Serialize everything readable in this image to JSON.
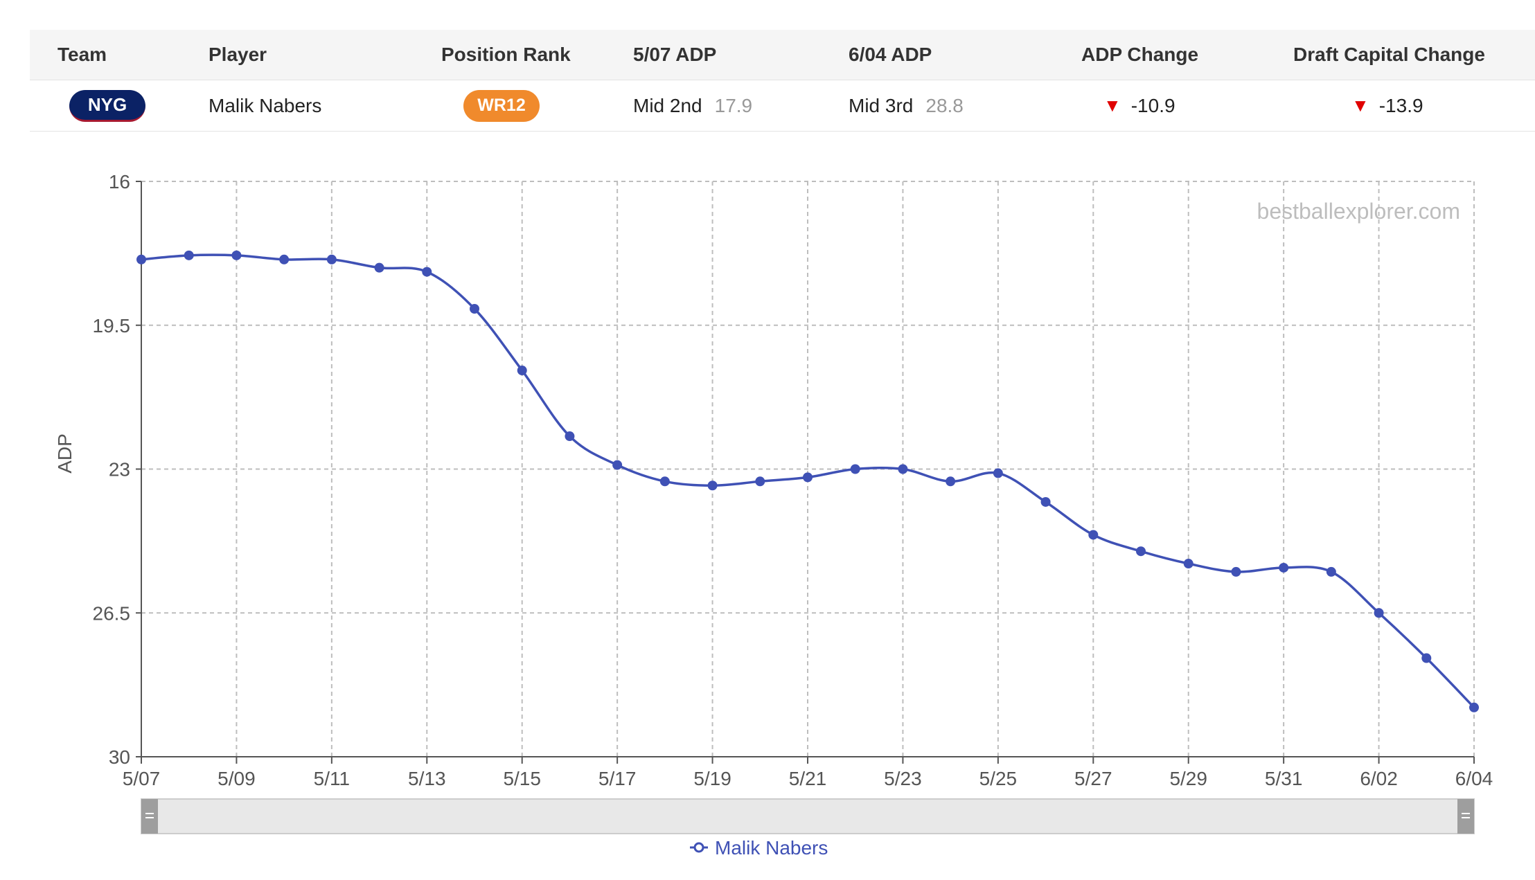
{
  "table": {
    "headers": {
      "team": "Team",
      "player": "Player",
      "position_rank": "Position Rank",
      "adp_start": "5/07 ADP",
      "adp_end": "6/04 ADP",
      "adp_change": "ADP Change",
      "draft_capital_change": "Draft Capital Change"
    },
    "row": {
      "team": "NYG",
      "player": "Malik Nabers",
      "position_rank": "WR12",
      "adp_start_round": "Mid 2nd",
      "adp_start_value": "17.9",
      "adp_end_round": "Mid 3rd",
      "adp_end_value": "28.8",
      "adp_change": "-10.9",
      "draft_capital_change": "-13.9"
    }
  },
  "watermark": "bestballexplorer.com",
  "colors": {
    "team_badge": "#0b2265",
    "position_badge": "#f08a2c",
    "series": "#3f51b5",
    "down": "#e00000"
  },
  "chart_data": {
    "type": "line",
    "title": "",
    "xlabel": "",
    "ylabel": "ADP",
    "ylim": [
      16,
      30
    ],
    "y_reversed": true,
    "yticks": [
      "16",
      "19.5",
      "23",
      "26.5",
      "30"
    ],
    "xtick_labels": [
      "5/07",
      "5/09",
      "5/11",
      "5/13",
      "5/15",
      "5/17",
      "5/19",
      "5/21",
      "5/23",
      "5/25",
      "5/27",
      "5/29",
      "5/31",
      "6/02",
      "6/04"
    ],
    "x": [
      "5/07",
      "5/08",
      "5/09",
      "5/10",
      "5/11",
      "5/12",
      "5/13",
      "5/14",
      "5/15",
      "5/16",
      "5/17",
      "5/18",
      "5/19",
      "5/20",
      "5/21",
      "5/22",
      "5/23",
      "5/24",
      "5/25",
      "5/26",
      "5/27",
      "5/28",
      "5/29",
      "5/30",
      "5/31",
      "6/01",
      "6/02",
      "6/03",
      "6/04"
    ],
    "series": [
      {
        "name": "Malik Nabers",
        "values": [
          17.9,
          17.8,
          17.8,
          17.9,
          17.9,
          18.1,
          18.2,
          19.1,
          20.6,
          22.2,
          22.9,
          23.3,
          23.4,
          23.3,
          23.2,
          23.0,
          23.0,
          23.3,
          23.1,
          23.8,
          24.6,
          25.0,
          25.3,
          25.5,
          25.4,
          25.5,
          26.5,
          27.6,
          28.8
        ]
      }
    ],
    "grid": true,
    "legend": "bottom-center"
  }
}
